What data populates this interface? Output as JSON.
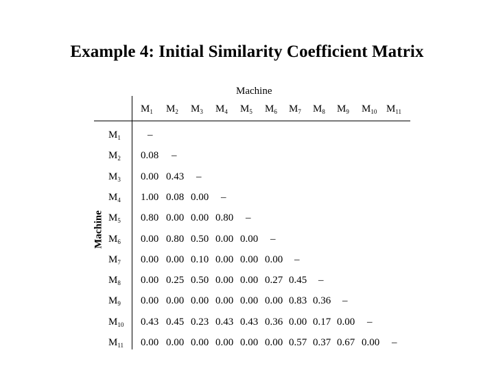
{
  "title": "Example 4: Initial Similarity Coefficient Matrix",
  "column_group_label": "Machine",
  "row_group_label": "Machine",
  "columns": [
    {
      "base": "M",
      "sub": "1"
    },
    {
      "base": "M",
      "sub": "2"
    },
    {
      "base": "M",
      "sub": "3"
    },
    {
      "base": "M",
      "sub": "4"
    },
    {
      "base": "M",
      "sub": "5"
    },
    {
      "base": "M",
      "sub": "6"
    },
    {
      "base": "M",
      "sub": "7"
    },
    {
      "base": "M",
      "sub": "8"
    },
    {
      "base": "M",
      "sub": "9"
    },
    {
      "base": "M",
      "sub": "10"
    },
    {
      "base": "M",
      "sub": "11"
    }
  ],
  "rows": [
    {
      "base": "M",
      "sub": "1",
      "values": [
        "–"
      ]
    },
    {
      "base": "M",
      "sub": "2",
      "values": [
        "0.08",
        "–"
      ]
    },
    {
      "base": "M",
      "sub": "3",
      "values": [
        "0.00",
        "0.43",
        "–"
      ]
    },
    {
      "base": "M",
      "sub": "4",
      "values": [
        "1.00",
        "0.08",
        "0.00",
        "–"
      ]
    },
    {
      "base": "M",
      "sub": "5",
      "values": [
        "0.80",
        "0.00",
        "0.00",
        "0.80",
        "–"
      ]
    },
    {
      "base": "M",
      "sub": "6",
      "values": [
        "0.00",
        "0.80",
        "0.50",
        "0.00",
        "0.00",
        "–"
      ]
    },
    {
      "base": "M",
      "sub": "7",
      "values": [
        "0.00",
        "0.00",
        "0.10",
        "0.00",
        "0.00",
        "0.00",
        "–"
      ]
    },
    {
      "base": "M",
      "sub": "8",
      "values": [
        "0.00",
        "0.25",
        "0.50",
        "0.00",
        "0.00",
        "0.27",
        "0.45",
        "–"
      ]
    },
    {
      "base": "M",
      "sub": "9",
      "values": [
        "0.00",
        "0.00",
        "0.00",
        "0.00",
        "0.00",
        "0.00",
        "0.83",
        "0.36",
        "–"
      ]
    },
    {
      "base": "M",
      "sub": "10",
      "values": [
        "0.43",
        "0.45",
        "0.23",
        "0.43",
        "0.43",
        "0.36",
        "0.00",
        "0.17",
        "0.00",
        "–"
      ]
    },
    {
      "base": "M",
      "sub": "11",
      "values": [
        "0.00",
        "0.00",
        "0.00",
        "0.00",
        "0.00",
        "0.00",
        "0.57",
        "0.37",
        "0.67",
        "0.00",
        "–"
      ]
    }
  ]
}
